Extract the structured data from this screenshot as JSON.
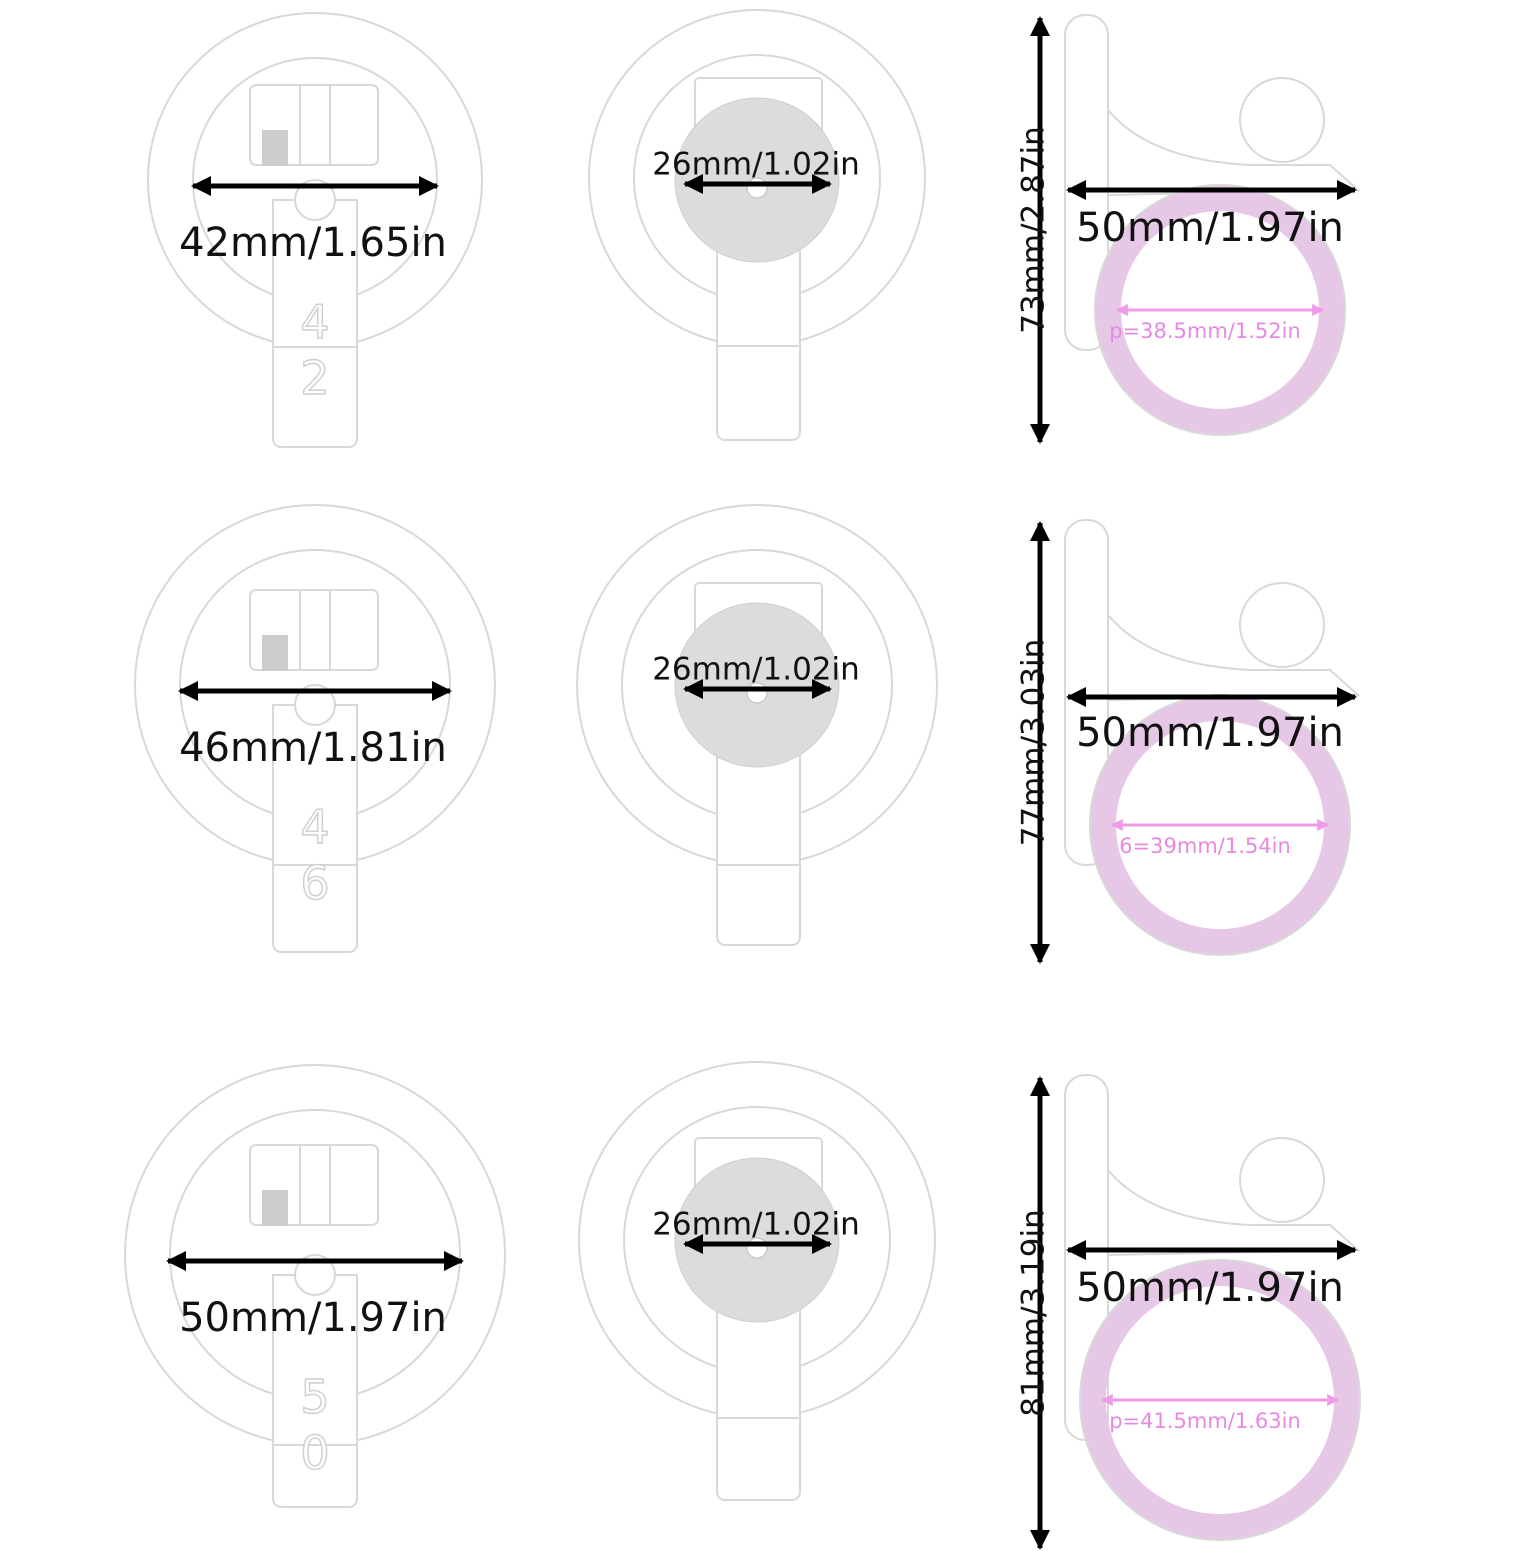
{
  "rows": [
    {
      "size_mark": "42",
      "front_width": "42mm/1.65in",
      "back_width": "26mm/1.02in",
      "side_height": "73mm/2.87in",
      "side_depth": "50mm/1.97in",
      "inner_diameter": "p=38.5mm/1.52in"
    },
    {
      "size_mark": "46",
      "front_width": "46mm/1.81in",
      "back_width": "26mm/1.02in",
      "side_height": "77mm/3.03in",
      "side_depth": "50mm/1.97in",
      "inner_diameter": "6=39mm/1.54in"
    },
    {
      "size_mark": "50",
      "front_width": "50mm/1.97in",
      "back_width": "26mm/1.02in",
      "side_height": "81mm/3.19in",
      "side_depth": "50mm/1.97in",
      "inner_diameter": "p=41.5mm/1.63in"
    }
  ]
}
